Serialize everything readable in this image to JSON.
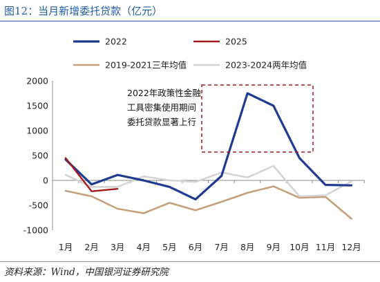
{
  "header": {
    "title": "图12：当月新增委托贷款（亿元）"
  },
  "footer": {
    "source": "资料来源：Wind，中国银河证券研究院"
  },
  "chart_data": {
    "type": "line",
    "title": "",
    "xlabel": "",
    "ylabel": "",
    "categories": [
      "1月",
      "2月",
      "3月",
      "4月",
      "5月",
      "6月",
      "7月",
      "8月",
      "9月",
      "10月",
      "11月",
      "12月"
    ],
    "ylim": [
      -1000,
      2000
    ],
    "yticks": [
      -1000,
      -500,
      0,
      500,
      1000,
      1500,
      2000
    ],
    "legend_position": "top",
    "grid": false,
    "series": [
      {
        "name": "2022",
        "color": "#1f3a93",
        "values": [
          420,
          -80,
          110,
          0,
          -130,
          -380,
          90,
          1750,
          1500,
          450,
          -90,
          -100
        ]
      },
      {
        "name": "2025",
        "color": "#a31b1b",
        "values": [
          450,
          -220,
          -170,
          null,
          null,
          null,
          null,
          null,
          null,
          null,
          null,
          null
        ]
      },
      {
        "name": "2019-2021三年均值",
        "color": "#c4a07a",
        "values": [
          -210,
          -320,
          -570,
          -660,
          -450,
          -600,
          -430,
          -250,
          -120,
          -350,
          -330,
          -770
        ]
      },
      {
        "name": "2023-2024两年均值",
        "color": "#d4d4d4",
        "values": [
          110,
          -130,
          -130,
          80,
          0,
          -30,
          160,
          60,
          290,
          -320,
          -300,
          -20
        ]
      }
    ],
    "annotation": {
      "text": "2022年政策性金融工具密集使用期间委托贷款显著上行"
    }
  }
}
